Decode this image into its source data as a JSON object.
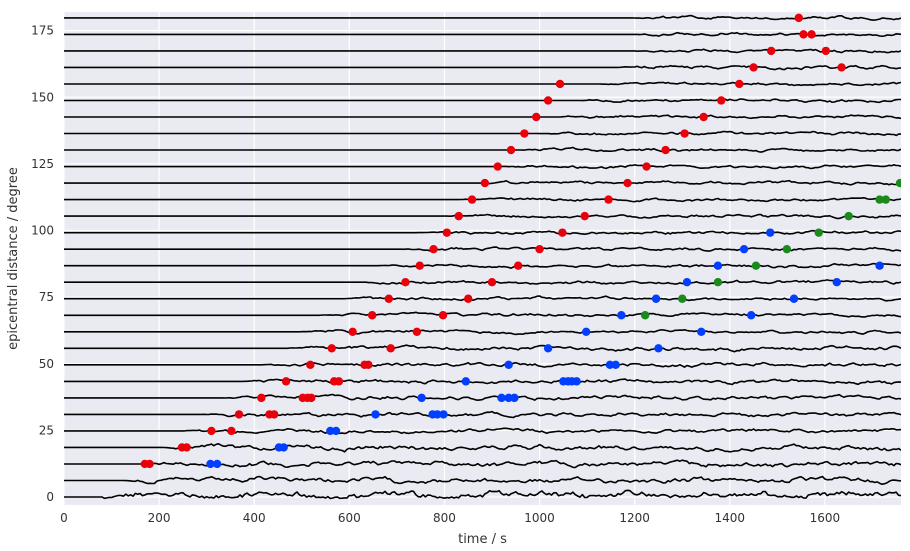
{
  "chart_data": {
    "type": "scatter",
    "title": "",
    "xlabel": "time / s",
    "ylabel": "epicentral distance / degree",
    "xlim": [
      0,
      1760
    ],
    "ylim": [
      -3,
      182
    ],
    "xticks": [
      0,
      200,
      400,
      600,
      800,
      1000,
      1200,
      1400,
      1600
    ],
    "yticks": [
      0,
      25,
      50,
      75,
      100,
      125,
      150,
      175
    ],
    "grid": true,
    "legend": "none",
    "background_color": "#eaeaf2",
    "grid_color": "#ffffff",
    "trace_color": "#000000",
    "trace_distances": [
      0,
      6.2,
      12.4,
      18.6,
      24.8,
      31.0,
      37.2,
      43.4,
      49.6,
      55.8,
      62.0,
      68.2,
      74.4,
      80.6,
      86.8,
      93.0,
      99.2,
      105.4,
      111.6,
      117.8,
      124.0,
      130.2,
      136.4,
      142.6,
      148.8,
      155.0,
      161.2,
      167.4,
      173.6,
      179.8
    ],
    "series": [
      {
        "color": "#e8000b",
        "points": [
          [
            170,
            12.4
          ],
          [
            180,
            12.4
          ],
          [
            248,
            18.6
          ],
          [
            258,
            18.6
          ],
          [
            310,
            24.8
          ],
          [
            352,
            24.8
          ],
          [
            368,
            31.0
          ],
          [
            432,
            31.0
          ],
          [
            442,
            31.0
          ],
          [
            415,
            37.2
          ],
          [
            502,
            37.2
          ],
          [
            512,
            37.2
          ],
          [
            520,
            37.2
          ],
          [
            467,
            43.4
          ],
          [
            568,
            43.4
          ],
          [
            578,
            43.4
          ],
          [
            518,
            49.6
          ],
          [
            632,
            49.6
          ],
          [
            640,
            49.6
          ],
          [
            563,
            55.8
          ],
          [
            687,
            55.8
          ],
          [
            607,
            62.0
          ],
          [
            742,
            62.0
          ],
          [
            648,
            68.2
          ],
          [
            797,
            68.2
          ],
          [
            683,
            74.4
          ],
          [
            850,
            74.4
          ],
          [
            718,
            80.6
          ],
          [
            900,
            80.6
          ],
          [
            748,
            86.8
          ],
          [
            955,
            86.8
          ],
          [
            777,
            93.0
          ],
          [
            1000,
            93.0
          ],
          [
            805,
            99.2
          ],
          [
            1048,
            99.2
          ],
          [
            830,
            105.4
          ],
          [
            1095,
            105.4
          ],
          [
            858,
            111.6
          ],
          [
            1145,
            111.6
          ],
          [
            885,
            117.8
          ],
          [
            1185,
            117.8
          ],
          [
            912,
            124.0
          ],
          [
            1225,
            124.0
          ],
          [
            940,
            130.2
          ],
          [
            1265,
            130.2
          ],
          [
            968,
            136.4
          ],
          [
            1305,
            136.4
          ],
          [
            993,
            142.6
          ],
          [
            1345,
            142.6
          ],
          [
            1018,
            148.8
          ],
          [
            1382,
            148.8
          ],
          [
            1043,
            155.0
          ],
          [
            1420,
            155.0
          ],
          [
            1450,
            161.2
          ],
          [
            1635,
            161.2
          ],
          [
            1487,
            167.4
          ],
          [
            1602,
            167.4
          ],
          [
            1555,
            173.6
          ],
          [
            1572,
            173.6
          ],
          [
            1545,
            179.8
          ]
        ]
      },
      {
        "color": "#023eff",
        "points": [
          [
            308,
            12.4
          ],
          [
            322,
            12.4
          ],
          [
            452,
            18.6
          ],
          [
            462,
            18.6
          ],
          [
            560,
            24.8
          ],
          [
            572,
            24.8
          ],
          [
            655,
            31.0
          ],
          [
            775,
            31.0
          ],
          [
            785,
            31.0
          ],
          [
            798,
            31.0
          ],
          [
            752,
            37.2
          ],
          [
            920,
            37.2
          ],
          [
            935,
            37.2
          ],
          [
            947,
            37.2
          ],
          [
            845,
            43.4
          ],
          [
            1050,
            43.4
          ],
          [
            1060,
            43.4
          ],
          [
            1068,
            43.4
          ],
          [
            1078,
            43.4
          ],
          [
            935,
            49.6
          ],
          [
            1148,
            49.6
          ],
          [
            1160,
            49.6
          ],
          [
            1018,
            55.8
          ],
          [
            1250,
            55.8
          ],
          [
            1098,
            62.0
          ],
          [
            1340,
            62.0
          ],
          [
            1172,
            68.2
          ],
          [
            1445,
            68.2
          ],
          [
            1245,
            74.4
          ],
          [
            1535,
            74.4
          ],
          [
            1310,
            80.6
          ],
          [
            1625,
            80.6
          ],
          [
            1375,
            86.8
          ],
          [
            1715,
            86.8
          ],
          [
            1430,
            93.0
          ],
          [
            1485,
            99.2
          ]
        ]
      },
      {
        "color": "#1a8a1a",
        "points": [
          [
            1222,
            68.2
          ],
          [
            1300,
            74.4
          ],
          [
            1375,
            80.6
          ],
          [
            1455,
            86.8
          ],
          [
            1520,
            93.0
          ],
          [
            1587,
            99.2
          ],
          [
            1650,
            105.4
          ],
          [
            1715,
            111.6
          ],
          [
            1728,
            111.6
          ],
          [
            1758,
            117.8
          ]
        ]
      }
    ]
  }
}
